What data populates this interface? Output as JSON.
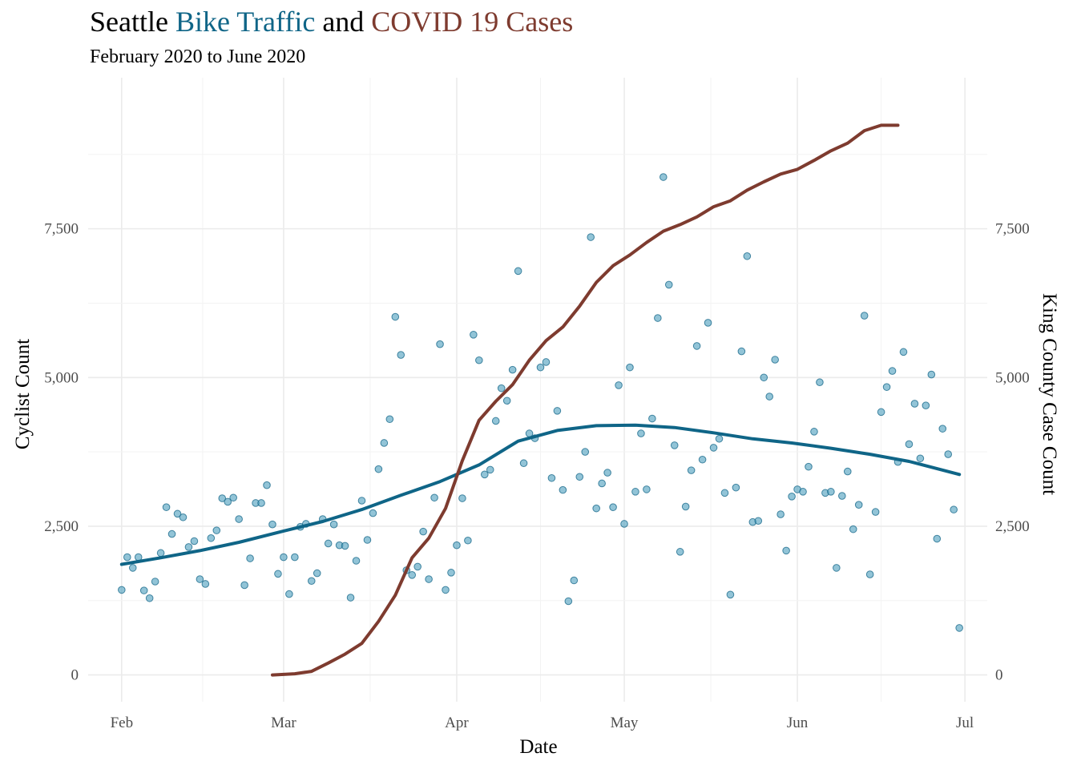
{
  "chart_data": {
    "type": "scatter",
    "title": {
      "parts": [
        {
          "text": "Seattle ",
          "color": "#000000"
        },
        {
          "text": "Bike Traffic",
          "color": "#0F6587"
        },
        {
          "text": " and ",
          "color": "#000000"
        },
        {
          "text": "COVID 19 Cases",
          "color": "#7E3B2F"
        }
      ]
    },
    "subtitle": "February 2020 to June 2020",
    "xlabel": "Date",
    "ylabel": "Cyclist Count",
    "y2label": "King County Case Count",
    "x_ticks": [
      {
        "date": "2020-02-01",
        "label": "Feb"
      },
      {
        "date": "2020-03-01",
        "label": "Mar"
      },
      {
        "date": "2020-04-01",
        "label": "Apr"
      },
      {
        "date": "2020-05-01",
        "label": "May"
      },
      {
        "date": "2020-06-01",
        "label": "Jun"
      },
      {
        "date": "2020-07-01",
        "label": "Jul"
      }
    ],
    "xlim": [
      "2020-01-26",
      "2020-07-05"
    ],
    "y_ticks": [
      {
        "value": 0,
        "label": "0"
      },
      {
        "value": 2500,
        "label": "2,500"
      },
      {
        "value": 5000,
        "label": "5,000"
      },
      {
        "value": 7500,
        "label": "7,500"
      }
    ],
    "y2_ticks": [
      {
        "value": 0,
        "label": "0"
      },
      {
        "value": 2500,
        "label": "2,500"
      },
      {
        "value": 5000,
        "label": "5,000"
      },
      {
        "value": 7500,
        "label": "7,500"
      }
    ],
    "ylim": [
      -450,
      10040
    ],
    "grid": true,
    "colors": {
      "points": "#4FA0BF",
      "trend": "#0F6587",
      "covid": "#7E3B2F"
    },
    "series": [
      {
        "kind": "points",
        "x": [
          "2020-02-01",
          "2020-02-02",
          "2020-02-03",
          "2020-02-04",
          "2020-02-05",
          "2020-02-06",
          "2020-02-07",
          "2020-02-08",
          "2020-02-09",
          "2020-02-10",
          "2020-02-11",
          "2020-02-12",
          "2020-02-13",
          "2020-02-14",
          "2020-02-15",
          "2020-02-16",
          "2020-02-17",
          "2020-02-18",
          "2020-02-19",
          "2020-02-20",
          "2020-02-21",
          "2020-02-22",
          "2020-02-23",
          "2020-02-24",
          "2020-02-25",
          "2020-02-26",
          "2020-02-27",
          "2020-02-28",
          "2020-02-29",
          "2020-03-01",
          "2020-03-02",
          "2020-03-03",
          "2020-03-04",
          "2020-03-05",
          "2020-03-06",
          "2020-03-07",
          "2020-03-08",
          "2020-03-09",
          "2020-03-10",
          "2020-03-11",
          "2020-03-12",
          "2020-03-13",
          "2020-03-14",
          "2020-03-15",
          "2020-03-16",
          "2020-03-17",
          "2020-03-18",
          "2020-03-19",
          "2020-03-20",
          "2020-03-21",
          "2020-03-22",
          "2020-03-23",
          "2020-03-24",
          "2020-03-25",
          "2020-03-26",
          "2020-03-27",
          "2020-03-28",
          "2020-03-29",
          "2020-03-30",
          "2020-03-31",
          "2020-04-01",
          "2020-04-02",
          "2020-04-03",
          "2020-04-04",
          "2020-04-05",
          "2020-04-06",
          "2020-04-07",
          "2020-04-08",
          "2020-04-09",
          "2020-04-10",
          "2020-04-11",
          "2020-04-12",
          "2020-04-13",
          "2020-04-14",
          "2020-04-15",
          "2020-04-16",
          "2020-04-17",
          "2020-04-18",
          "2020-04-19",
          "2020-04-20",
          "2020-04-21",
          "2020-04-22",
          "2020-04-23",
          "2020-04-24",
          "2020-04-25",
          "2020-04-26",
          "2020-04-27",
          "2020-04-28",
          "2020-04-29",
          "2020-04-30",
          "2020-05-01",
          "2020-05-02",
          "2020-05-03",
          "2020-05-04",
          "2020-05-05",
          "2020-05-06",
          "2020-05-07",
          "2020-05-08",
          "2020-05-09",
          "2020-05-10",
          "2020-05-11",
          "2020-05-12",
          "2020-05-13",
          "2020-05-14",
          "2020-05-15",
          "2020-05-16",
          "2020-05-17",
          "2020-05-18",
          "2020-05-19",
          "2020-05-20",
          "2020-05-21",
          "2020-05-22",
          "2020-05-23",
          "2020-05-24",
          "2020-05-25",
          "2020-05-26",
          "2020-05-27",
          "2020-05-28",
          "2020-05-29",
          "2020-05-30",
          "2020-05-31",
          "2020-06-01",
          "2020-06-02",
          "2020-06-03",
          "2020-06-04",
          "2020-06-05",
          "2020-06-06",
          "2020-06-07",
          "2020-06-08",
          "2020-06-09",
          "2020-06-10",
          "2020-06-11",
          "2020-06-12",
          "2020-06-13",
          "2020-06-14",
          "2020-06-15",
          "2020-06-16",
          "2020-06-17",
          "2020-06-18",
          "2020-06-19",
          "2020-06-20",
          "2020-06-21",
          "2020-06-22",
          "2020-06-23",
          "2020-06-24",
          "2020-06-25",
          "2020-06-26",
          "2020-06-27",
          "2020-06-28",
          "2020-06-29",
          "2020-06-30"
        ],
        "y": [
          1430,
          1980,
          1800,
          1980,
          1420,
          1290,
          1570,
          2050,
          2820,
          2370,
          2710,
          2650,
          2150,
          2250,
          1610,
          1530,
          2300,
          2430,
          2970,
          2910,
          2980,
          2620,
          1510,
          1960,
          2890,
          2890,
          3190,
          2530,
          1700,
          1980,
          1360,
          1980,
          2490,
          2540,
          1580,
          1710,
          2620,
          2210,
          2530,
          2180,
          2170,
          1300,
          1920,
          2930,
          2270,
          2720,
          3460,
          3900,
          4300,
          6020,
          5380,
          1760,
          1680,
          1820,
          2410,
          1610,
          2980,
          5560,
          1430,
          1720,
          2180,
          2970,
          2260,
          5720,
          5290,
          3370,
          3450,
          4270,
          4820,
          4610,
          5130,
          6790,
          3560,
          4060,
          3980,
          5170,
          5260,
          3310,
          4440,
          3110,
          1240,
          1590,
          3330,
          3750,
          7360,
          2800,
          3220,
          3400,
          2820,
          4870,
          2540,
          5170,
          3080,
          4060,
          3120,
          4310,
          6000,
          8370,
          6560,
          3860,
          2070,
          2830,
          3440,
          5530,
          3620,
          5920,
          3820,
          3970,
          3060,
          1350,
          3150,
          5440,
          7040,
          2570,
          2590,
          5000,
          4680,
          5300,
          2700,
          2090,
          3000,
          3120,
          3080,
          3500,
          4090,
          4920,
          3060,
          3080,
          1800,
          3010,
          3420,
          2450,
          2860,
          6040,
          1690,
          2740,
          4420,
          4840,
          5110,
          3580,
          5430,
          3880,
          4560,
          3640,
          4530,
          5050,
          2290,
          4140,
          3710,
          2780,
          790
        ]
      },
      {
        "kind": "trend",
        "x": [
          "2020-02-01",
          "2020-02-08",
          "2020-02-15",
          "2020-02-22",
          "2020-03-01",
          "2020-03-08",
          "2020-03-15",
          "2020-03-22",
          "2020-03-29",
          "2020-04-05",
          "2020-04-12",
          "2020-04-19",
          "2020-04-26",
          "2020-05-03",
          "2020-05-10",
          "2020-05-17",
          "2020-05-24",
          "2020-05-31",
          "2020-06-07",
          "2020-06-14",
          "2020-06-21",
          "2020-06-30"
        ],
        "y": [
          1860,
          1970,
          2090,
          2230,
          2420,
          2580,
          2780,
          3020,
          3250,
          3530,
          3930,
          4110,
          4190,
          4200,
          4160,
          4070,
          3970,
          3900,
          3810,
          3710,
          3590,
          3370
        ]
      },
      {
        "kind": "covid",
        "x": [
          "2020-02-28",
          "2020-03-03",
          "2020-03-06",
          "2020-03-09",
          "2020-03-12",
          "2020-03-15",
          "2020-03-18",
          "2020-03-21",
          "2020-03-24",
          "2020-03-27",
          "2020-03-30",
          "2020-04-02",
          "2020-04-05",
          "2020-04-08",
          "2020-04-11",
          "2020-04-14",
          "2020-04-17",
          "2020-04-20",
          "2020-04-23",
          "2020-04-26",
          "2020-04-29",
          "2020-05-02",
          "2020-05-05",
          "2020-05-08",
          "2020-05-11",
          "2020-05-14",
          "2020-05-17",
          "2020-05-20",
          "2020-05-23",
          "2020-05-26",
          "2020-05-29",
          "2020-06-01",
          "2020-06-04",
          "2020-06-07",
          "2020-06-10",
          "2020-06-13",
          "2020-06-16",
          "2020-06-19"
        ],
        "y": [
          0,
          20,
          60,
          200,
          350,
          530,
          900,
          1340,
          1970,
          2300,
          2800,
          3600,
          4280,
          4600,
          4880,
          5290,
          5620,
          5850,
          6200,
          6600,
          6880,
          7060,
          7270,
          7460,
          7570,
          7700,
          7870,
          7970,
          8150,
          8290,
          8420,
          8500,
          8650,
          8810,
          8940,
          9150,
          9240,
          9240
        ]
      }
    ]
  }
}
